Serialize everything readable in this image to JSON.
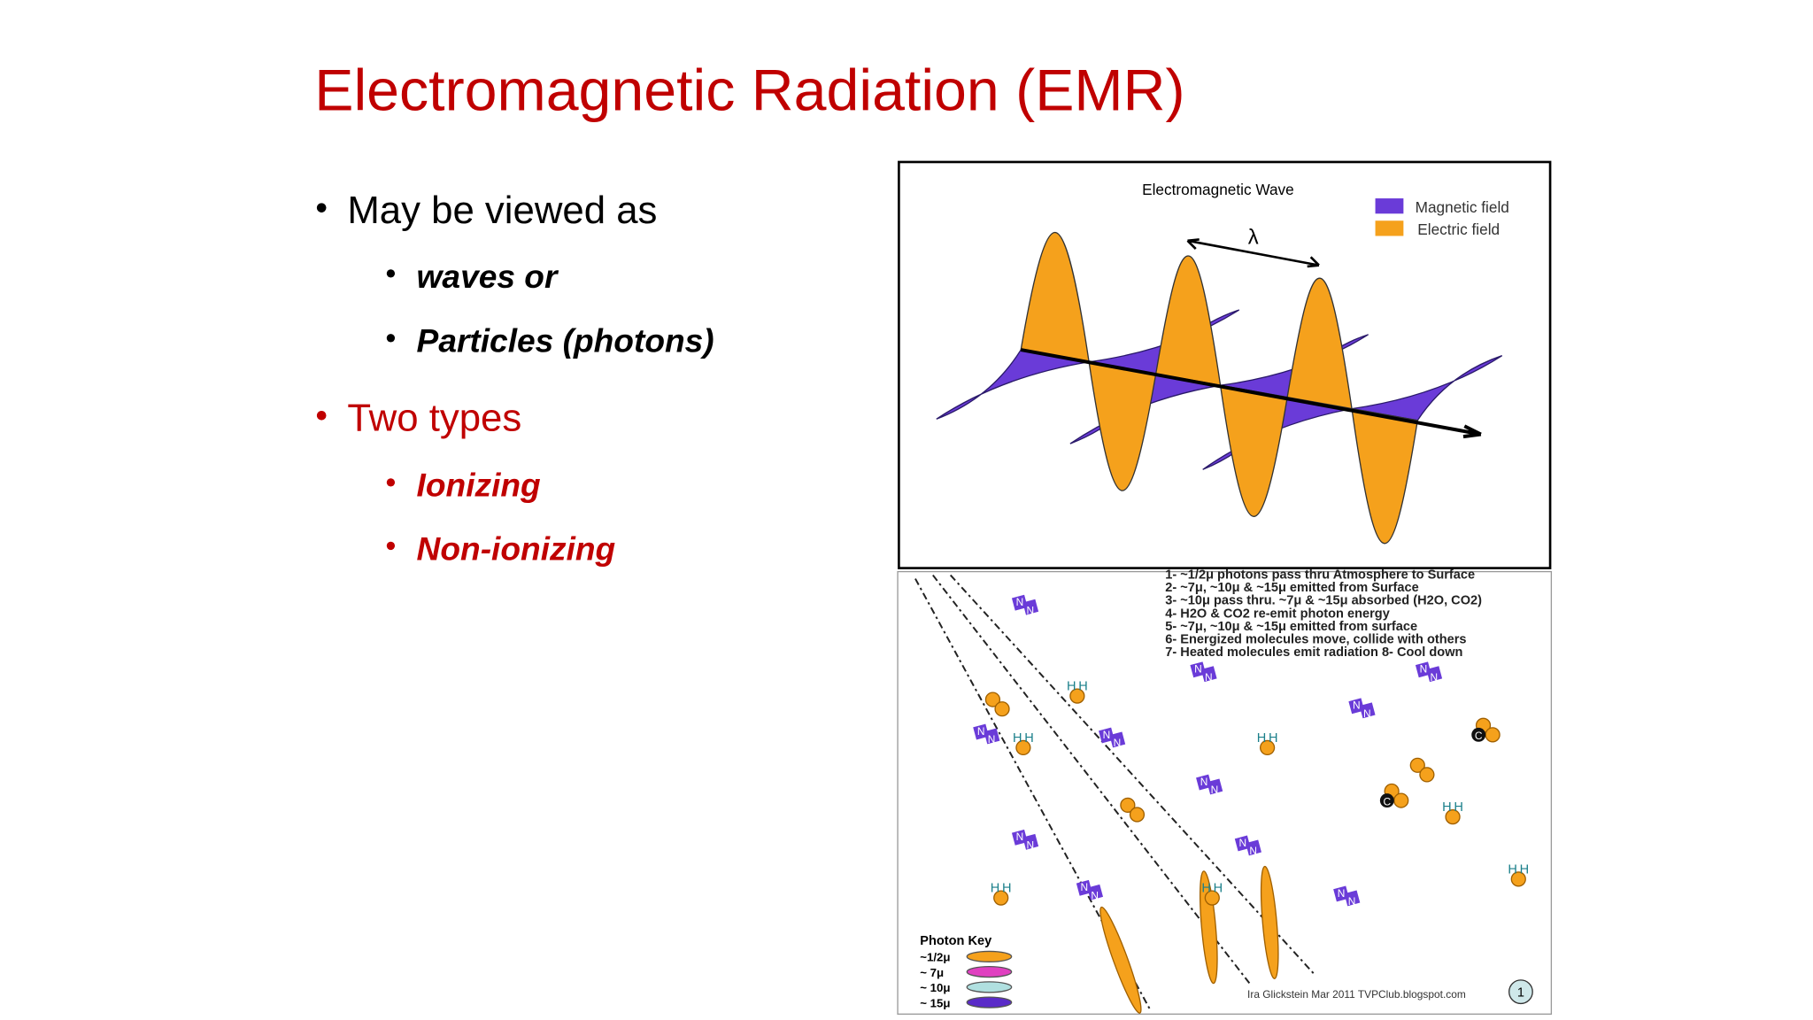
{
  "title": "Electromagnetic Radiation (EMR)",
  "bullets": [
    {
      "text": "May be viewed as",
      "sub": [
        "waves or",
        "Particles (photons)"
      ]
    },
    {
      "text": "Two types",
      "sub": [
        "Ionizing",
        "Non-ionizing"
      ]
    }
  ],
  "figure_wave": {
    "title": "Electromagnetic Wave",
    "legend": [
      "Magnetic field",
      "Electric field"
    ],
    "symbol": "λ"
  },
  "figure_greenhouse": {
    "notes": [
      "1- ~1/2μ photons pass thru Atmosphere to Surface",
      "2- ~7μ, ~10μ & ~15μ emitted from Surface",
      "3- ~10μ pass thru. ~7μ & ~15μ absorbed (H2O, CO2)",
      "4- H2O & CO2 re-emit photon energy",
      "5- ~7μ, ~10μ & ~15μ emitted from surface",
      "6- Energized molecules move, collide with others",
      "7- Heated molecules emit radiation  8- Cool down"
    ],
    "key_title": "Photon Key",
    "key": [
      "~1/2μ",
      "~ 7μ",
      "~ 10μ",
      "~ 15μ"
    ],
    "credit": "Ira Glickstein Mar 2011 TVPClub.blogspot.com",
    "badge": "1",
    "atoms": {
      "nitrogen": "N",
      "hydrogen": "H",
      "carbon": "C"
    }
  }
}
